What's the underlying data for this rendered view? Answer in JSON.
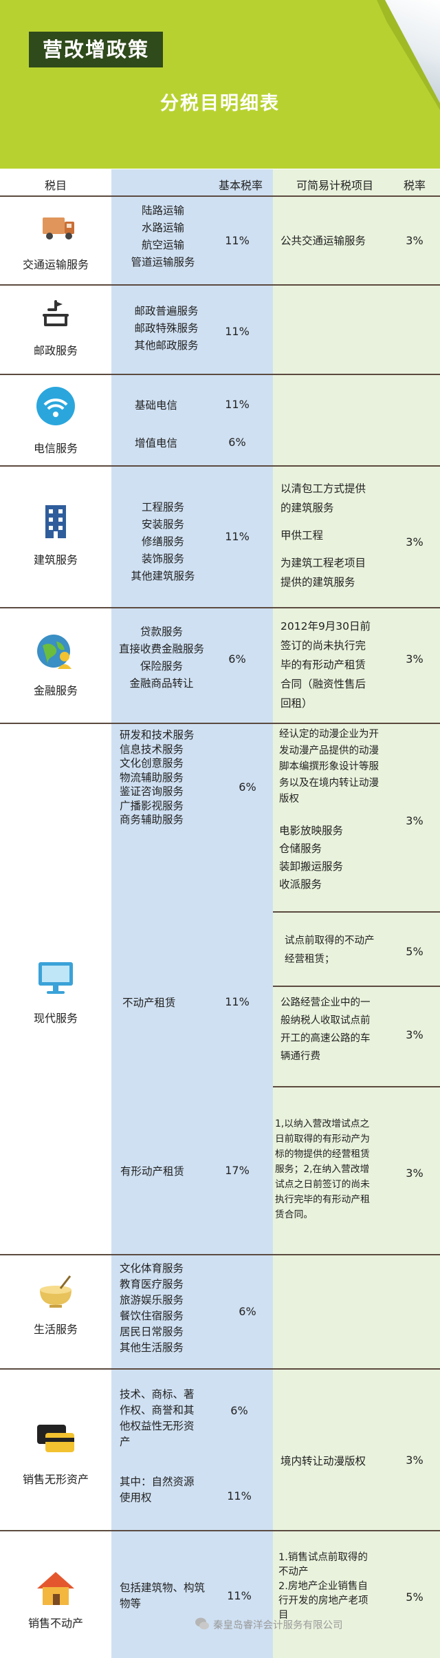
{
  "header": {
    "title": "营改增政策",
    "subtitle": "分税目明细表"
  },
  "columns": {
    "category": "税目",
    "basic_rate": "基本税率",
    "simple_items": "可简易计税项目",
    "rate": "税率"
  },
  "rows": [
    {
      "icon": "truck-icon",
      "category": "交通运输服务",
      "items": [
        "陆路运输",
        "水路运输",
        "航空运输",
        "管道运输服务"
      ],
      "basic_rate": "11%",
      "simple": [
        "公共交通运输服务"
      ],
      "rate": "3%"
    },
    {
      "icon": "mailbox-icon",
      "category": "邮政服务",
      "items": [
        "邮政普遍服务",
        "邮政特殊服务",
        "其他邮政服务"
      ],
      "basic_rate": "11%",
      "simple": [],
      "rate": ""
    },
    {
      "icon": "wifi-icon",
      "category": "电信服务",
      "items": [
        "基础电信",
        "增值电信"
      ],
      "basic_rates": [
        "11%",
        "6%"
      ],
      "simple": [],
      "rate": ""
    },
    {
      "icon": "building-icon",
      "category": "建筑服务",
      "items": [
        "工程服务",
        "安装服务",
        "修缮服务",
        "装饰服务",
        "其他建筑服务"
      ],
      "basic_rate": "11%",
      "simple": [
        "以清包工方式提供",
        "的建筑服务",
        "甲供工程",
        "为建筑工程老项目",
        "提供的建筑服务"
      ],
      "rate": "3%"
    },
    {
      "icon": "globe-person-icon",
      "category": "金融服务",
      "items": [
        "贷款服务",
        "直接收费金融服务",
        "保险服务",
        "金融商品转让"
      ],
      "basic_rate": "6%",
      "simple": [
        "2012年9月30日前",
        "签订的尚未执行完",
        "毕的有形动产租赁",
        "合同（融资性售后",
        "回租）"
      ],
      "rate": "3%"
    },
    {
      "icon": "monitor-icon",
      "category": "现代服务",
      "items": [
        "研发和技术服务",
        "信息技术服务",
        "文化创意服务",
        "物流辅助服务",
        "鉴证咨询服务",
        "广播影视服务",
        "商务辅助服务"
      ],
      "basic_rate": "6%",
      "simple": [
        "经认定的动漫企业为开",
        "发动漫产品提供的动漫",
        "脚本编撰形象设计等服",
        "务以及在境内转让动漫",
        "版权",
        "电影放映服务",
        "仓储服务",
        "装卸搬运服务",
        "收派服务"
      ],
      "rate": "3%",
      "sub1": {
        "item": "不动产租赁",
        "basic_rate": "11%",
        "simple_a": [
          "试点前取得的不动产",
          "经营租赁；"
        ],
        "rate_a": "5%",
        "simple_b": [
          "公路经营企业中的一",
          "般纳税人收取试点前",
          "开工的高速公路的车",
          "辆通行费"
        ],
        "rate_b": "3%"
      },
      "sub2": {
        "item": "有形动产租赁",
        "basic_rate": "17%",
        "simple": [
          "1,以纳入营改增试点之",
          "日前取得的有形动产为",
          "标的物提供的经营租赁",
          "服务；2,在纳入营改增",
          "试点之日前签订的尚未",
          "执行完毕的有形动产租",
          "赁合同。"
        ],
        "rate": "3%"
      }
    },
    {
      "icon": "bowl-icon",
      "category": "生活服务",
      "items": [
        "文化体育服务",
        "教育医疗服务",
        "旅游娱乐服务",
        "餐饮住宿服务",
        "居民日常服务",
        "其他生活服务"
      ],
      "basic_rate": "6%",
      "simple": [],
      "rate": ""
    },
    {
      "icon": "cards-icon",
      "category": "销售无形资产",
      "items": [
        "技术、商标、著",
        "作权、商誉和其",
        "他权益性无形资",
        "产"
      ],
      "basic_rate": "6%",
      "items2": [
        "其中：自然资源",
        "使用权"
      ],
      "basic_rate2": "11%",
      "simple": [
        "境内转让动漫版权"
      ],
      "rate": "3%"
    },
    {
      "icon": "house-icon",
      "category": "销售不动产",
      "items": [
        "包括建筑物、构筑",
        "物等"
      ],
      "basic_rate": "11%",
      "simple": [
        "1.销售试点前取得的",
        "不动产",
        "2.房地产企业销售自",
        "行开发的房地产老项",
        "目"
      ],
      "rate": "5%"
    }
  ],
  "watermark": "秦皇岛睿洋会计服务有限公司",
  "colors": {
    "header_bg": "#b7d230",
    "title_bg": "#2f4a1b",
    "blue_col": "#cfe0f2",
    "green_col": "#e9f2dc",
    "divider": "#5b4a3f"
  }
}
